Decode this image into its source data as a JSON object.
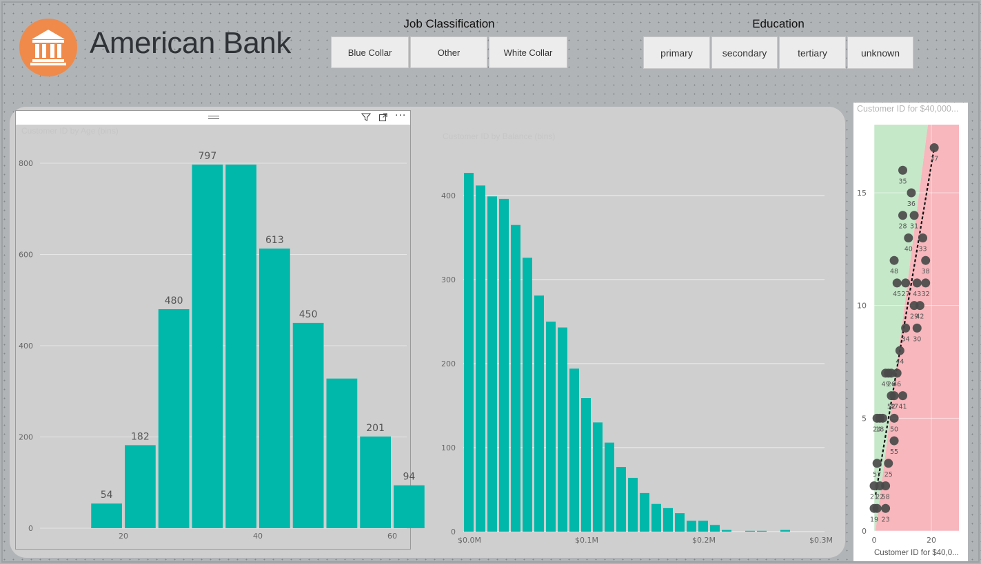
{
  "header": {
    "title": "American Bank",
    "logo_icon": "bank-building-icon"
  },
  "slicers": {
    "job": {
      "title": "Job Classification",
      "options": [
        "Blue Collar",
        "Other",
        "White Collar"
      ]
    },
    "education": {
      "title": "Education",
      "options": [
        "primary",
        "secondary",
        "tertiary",
        "unknown"
      ]
    }
  },
  "visual_header": {
    "icons": [
      "filter-icon",
      "focus-mode-icon",
      "more-options-icon"
    ],
    "faint_title": "Customer ID by Age (bins)"
  },
  "colors": {
    "background": "#b1b4b6",
    "bar": "#00b8aa",
    "logo": "#ef8a4a",
    "zone_green": "#c5e8c8",
    "zone_red": "#f7b7bc",
    "point": "#4a4a4a"
  },
  "chart_data": [
    {
      "type": "bar",
      "title": "Customer ID by Age (bins)",
      "x_ticks": [
        "20",
        "40",
        "60"
      ],
      "y_ticks": [
        "0",
        "200",
        "400",
        "600",
        "800"
      ],
      "ylim": [
        0,
        850
      ],
      "xlim": [
        10,
        65
      ],
      "bin_width": 5,
      "x": [
        17.5,
        22.5,
        27.5,
        32.5,
        37.5,
        42.5,
        47.5,
        52.5,
        57.5,
        62.5
      ],
      "values": [
        54,
        182,
        480,
        797,
        797,
        613,
        450,
        328,
        201,
        94
      ],
      "data_labels": [
        "54",
        "182",
        "480",
        "797",
        "",
        "613",
        "450",
        "",
        "201",
        "94"
      ]
    },
    {
      "type": "bar",
      "title": "Customer ID by Balance (bins)",
      "x_ticks": [
        "$0.0M",
        "$0.1M",
        "$0.2M",
        "$0.3M"
      ],
      "y_ticks": [
        "0",
        "100",
        "200",
        "300",
        "400"
      ],
      "ylim": [
        0,
        440
      ],
      "xlim": [
        0,
        0.3
      ],
      "values": [
        427,
        412,
        399,
        396,
        365,
        326,
        281,
        250,
        243,
        194,
        159,
        130,
        106,
        77,
        64,
        46,
        33,
        28,
        22,
        13,
        13,
        8,
        2,
        0,
        1,
        1,
        0,
        2
      ]
    },
    {
      "type": "scatter",
      "title": "Customer ID for $40,000...",
      "xlabel": "Customer ID for $40,0...",
      "x_ticks": [
        "0",
        "20"
      ],
      "y_ticks": [
        "0",
        "5",
        "10",
        "15"
      ],
      "xlim": [
        0,
        30
      ],
      "ylim": [
        0,
        18
      ],
      "points": [
        {
          "x": 21,
          "y": 17,
          "label": "37"
        },
        {
          "x": 10,
          "y": 16,
          "label": "35"
        },
        {
          "x": 13,
          "y": 15,
          "label": "36"
        },
        {
          "x": 10,
          "y": 14,
          "label": "28"
        },
        {
          "x": 14,
          "y": 14,
          "label": "31"
        },
        {
          "x": 12,
          "y": 13,
          "label": "40"
        },
        {
          "x": 17,
          "y": 13,
          "label": "33"
        },
        {
          "x": 7,
          "y": 12,
          "label": "48"
        },
        {
          "x": 18,
          "y": 12,
          "label": "38"
        },
        {
          "x": 8,
          "y": 11,
          "label": "45"
        },
        {
          "x": 11,
          "y": 11,
          "label": "27"
        },
        {
          "x": 15,
          "y": 11,
          "label": "43"
        },
        {
          "x": 18,
          "y": 11,
          "label": "32"
        },
        {
          "x": 14,
          "y": 10,
          "label": "29"
        },
        {
          "x": 16,
          "y": 10,
          "label": "42"
        },
        {
          "x": 11,
          "y": 9,
          "label": "34"
        },
        {
          "x": 15,
          "y": 9,
          "label": "30"
        },
        {
          "x": 9,
          "y": 8,
          "label": "44"
        },
        {
          "x": 4,
          "y": 7,
          "label": "49"
        },
        {
          "x": 5,
          "y": 7,
          "label": ""
        },
        {
          "x": 6,
          "y": 7,
          "label": "26"
        },
        {
          "x": 8,
          "y": 7,
          "label": "46"
        },
        {
          "x": 6,
          "y": 6,
          "label": "52"
        },
        {
          "x": 7,
          "y": 6,
          "label": "47"
        },
        {
          "x": 10,
          "y": 6,
          "label": "41"
        },
        {
          "x": 1,
          "y": 5,
          "label": "24"
        },
        {
          "x": 2,
          "y": 5,
          "label": "18"
        },
        {
          "x": 3,
          "y": 5,
          "label": ""
        },
        {
          "x": 7,
          "y": 5,
          "label": "50"
        },
        {
          "x": 7,
          "y": 4,
          "label": "55"
        },
        {
          "x": 1,
          "y": 3,
          "label": "57"
        },
        {
          "x": 5,
          "y": 3,
          "label": "25"
        },
        {
          "x": 0,
          "y": 2,
          "label": "21"
        },
        {
          "x": 2,
          "y": 2,
          "label": "22"
        },
        {
          "x": 4,
          "y": 2,
          "label": "58"
        },
        {
          "x": 0,
          "y": 1,
          "label": "19"
        },
        {
          "x": 1,
          "y": 1,
          "label": ""
        },
        {
          "x": 4,
          "y": 1,
          "label": "23"
        }
      ]
    }
  ]
}
